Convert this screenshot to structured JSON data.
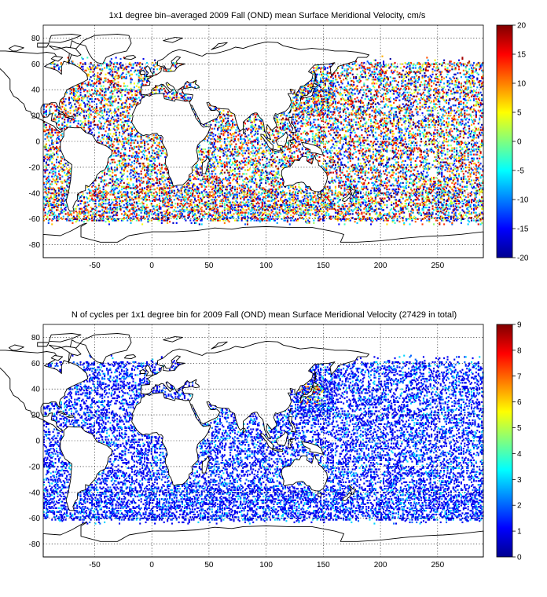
{
  "chart_data": [
    {
      "type": "heatmap",
      "title": "1x1 degree bin–averaged 2009 Fall (OND) mean Surface Meridional Velocity, cm/s",
      "xlim": [
        -95,
        290
      ],
      "ylim": [
        -90,
        90
      ],
      "xticks": [
        -50,
        0,
        50,
        100,
        150,
        200,
        250
      ],
      "yticks": [
        -80,
        -60,
        -40,
        -20,
        0,
        20,
        40,
        60,
        80
      ],
      "colorbar": {
        "min": -20,
        "max": 20,
        "ticks": [
          -20,
          -15,
          -10,
          -5,
          0,
          5,
          10,
          15,
          20
        ]
      },
      "grid": true,
      "colormap": "jet",
      "value_distribution": "scattered 1x1 degree ocean bins; mixed positive and negative values; largest magnitudes in western boundary currents and the Southern Ocean"
    },
    {
      "type": "heatmap",
      "title": "N of cycles per 1x1 degree bin for 2009 Fall (OND) mean Surface Meridional Velocity (27429 in total)",
      "xlim": [
        -95,
        290
      ],
      "ylim": [
        -90,
        90
      ],
      "xticks": [
        -50,
        0,
        50,
        100,
        150,
        200,
        250
      ],
      "yticks": [
        -80,
        -60,
        -40,
        -20,
        0,
        20,
        40,
        60,
        80
      ],
      "colorbar": {
        "min": 0,
        "max": 9,
        "ticks": [
          0,
          1,
          2,
          3,
          4,
          5,
          6,
          7,
          8,
          9
        ]
      },
      "grid": true,
      "colormap": "jet",
      "total_cycles": 27429,
      "value_distribution": "mostly 1–2 cycles per bin; higher counts (up to 9) near Japan / Kuroshio region"
    }
  ],
  "colors": {
    "land": "#ffffff",
    "coast": "#000000",
    "grid": "#000000"
  }
}
